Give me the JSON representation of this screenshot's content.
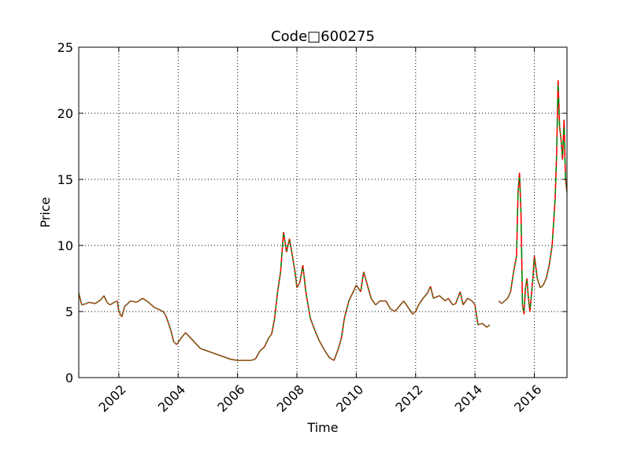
{
  "chart_data": {
    "type": "line",
    "title": "Code□600275",
    "xlabel": "Time",
    "ylabel": "Price",
    "xlim": [
      2000.65,
      2017.1
    ],
    "ylim": [
      0,
      25
    ],
    "grid": true,
    "x_ticks": [
      {
        "value": 2002,
        "label": "2002"
      },
      {
        "value": 2004,
        "label": "2004"
      },
      {
        "value": 2006,
        "label": "2006"
      },
      {
        "value": 2008,
        "label": "2008"
      },
      {
        "value": 2010,
        "label": "2010"
      },
      {
        "value": 2012,
        "label": "2012"
      },
      {
        "value": 2014,
        "label": "2014"
      },
      {
        "value": 2016,
        "label": "2016"
      }
    ],
    "y_ticks": [
      {
        "value": 0,
        "label": "0"
      },
      {
        "value": 5,
        "label": "5"
      },
      {
        "value": 10,
        "label": "10"
      },
      {
        "value": 15,
        "label": "15"
      },
      {
        "value": 20,
        "label": "20"
      },
      {
        "value": 25,
        "label": "25"
      }
    ],
    "colors": {
      "up": "#008000",
      "down": "#ff0000",
      "grid": "#000000",
      "axis": "#000000"
    },
    "series": [
      {
        "segments": [
          {
            "x": [
              2000.65,
              2000.75,
              2000.9,
              2001.0,
              2001.2,
              2001.4,
              2001.5,
              2001.6,
              2001.7,
              2001.85,
              2001.95,
              2002.0,
              2002.1,
              2002.2,
              2002.4,
              2002.6,
              2002.8,
              2003.0,
              2003.2,
              2003.4,
              2003.5,
              2003.6,
              2003.75,
              2003.85,
              2003.95,
              2004.1,
              2004.25,
              2004.5,
              2004.75,
              2005.0,
              2005.25,
              2005.5,
              2005.75,
              2006.0,
              2006.15,
              2006.3,
              2006.45,
              2006.6,
              2006.75,
              2006.9,
              2007.05,
              2007.15,
              2007.25,
              2007.35,
              2007.45,
              2007.55,
              2007.65,
              2007.75,
              2007.85,
              2007.95,
              2008.0,
              2008.1,
              2008.2,
              2008.3,
              2008.45,
              2008.6,
              2008.75,
              2008.85,
              2008.95,
              2009.1,
              2009.25,
              2009.4,
              2009.5,
              2009.6,
              2009.75,
              2009.9,
              2010.0,
              2010.15,
              2010.25,
              2010.35,
              2010.5,
              2010.65,
              2010.8,
              2011.0,
              2011.15,
              2011.3,
              2011.45,
              2011.6,
              2011.75,
              2011.9,
              2012.0,
              2012.1,
              2012.25,
              2012.4,
              2012.5,
              2012.6,
              2012.8,
              2013.0,
              2013.1,
              2013.25,
              2013.35,
              2013.5,
              2013.6,
              2013.75,
              2013.9,
              2014.0,
              2014.1,
              2014.25,
              2014.4,
              2014.5
            ],
            "y": [
              6.4,
              5.5,
              5.6,
              5.7,
              5.6,
              5.9,
              6.2,
              5.7,
              5.5,
              5.7,
              5.8,
              5.0,
              4.6,
              5.4,
              5.8,
              5.7,
              6.0,
              5.7,
              5.3,
              5.1,
              5.0,
              4.6,
              3.6,
              2.7,
              2.5,
              3.0,
              3.4,
              2.8,
              2.2,
              2.0,
              1.8,
              1.6,
              1.4,
              1.3,
              1.3,
              1.3,
              1.3,
              1.4,
              2.0,
              2.3,
              3.0,
              3.3,
              4.5,
              6.5,
              8.0,
              11.0,
              9.5,
              10.5,
              9.2,
              7.8,
              6.8,
              7.2,
              8.5,
              6.5,
              4.5,
              3.6,
              2.8,
              2.4,
              2.0,
              1.5,
              1.3,
              2.2,
              3.0,
              4.5,
              5.8,
              6.5,
              7.0,
              6.5,
              8.0,
              7.2,
              6.0,
              5.5,
              5.8,
              5.8,
              5.2,
              5.0,
              5.4,
              5.8,
              5.3,
              4.8,
              5.0,
              5.5,
              6.0,
              6.4,
              6.9,
              6.0,
              6.2,
              5.8,
              6.0,
              5.5,
              5.6,
              6.5,
              5.5,
              6.0,
              5.8,
              5.5,
              4.0,
              4.1,
              3.8,
              4.0
            ]
          },
          {
            "x": [
              2014.8,
              2014.9,
              2015.0,
              2015.1,
              2015.2,
              2015.3,
              2015.4,
              2015.45,
              2015.5,
              2015.55,
              2015.6,
              2015.65,
              2015.7,
              2015.75,
              2015.8,
              2015.85,
              2015.95,
              2016.0,
              2016.1,
              2016.2,
              2016.3,
              2016.4,
              2016.5,
              2016.6,
              2016.7,
              2016.75,
              2016.8,
              2016.85,
              2016.9,
              2016.95,
              2017.0,
              2017.05,
              2017.1
            ],
            "y": [
              5.8,
              5.6,
              5.8,
              6.0,
              6.5,
              8.0,
              9.2,
              14.0,
              15.5,
              12.5,
              5.5,
              4.8,
              6.8,
              7.5,
              6.0,
              5.0,
              7.5,
              9.2,
              7.5,
              6.8,
              7.0,
              7.5,
              8.5,
              10.0,
              13.5,
              16.8,
              22.5,
              19.0,
              18.0,
              16.5,
              19.5,
              15.0,
              14.0
            ]
          }
        ]
      }
    ]
  }
}
